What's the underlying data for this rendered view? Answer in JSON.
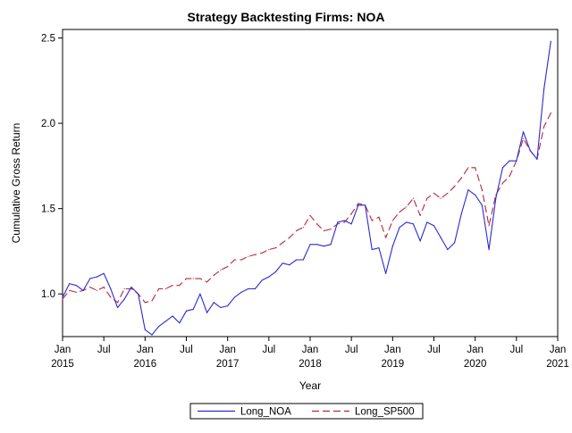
{
  "chart_data": {
    "type": "line",
    "title": "Strategy Backtesting  Firms: NOA",
    "xlabel": "Year",
    "ylabel": "Cumulative Gross Return",
    "xlim": [
      "2015-01",
      "2021-01"
    ],
    "ylim": [
      0.75,
      2.55
    ],
    "yticks": [
      "1.0",
      "1.5",
      "2.0",
      "2.5"
    ],
    "xticks": [
      {
        "date": "2015-01",
        "top": "Jan",
        "bottom": "2015"
      },
      {
        "date": "2015-07",
        "top": "Jul",
        "bottom": ""
      },
      {
        "date": "2016-01",
        "top": "Jan",
        "bottom": "2016"
      },
      {
        "date": "2016-07",
        "top": "Jul",
        "bottom": ""
      },
      {
        "date": "2017-01",
        "top": "Jan",
        "bottom": "2017"
      },
      {
        "date": "2017-07",
        "top": "Jul",
        "bottom": ""
      },
      {
        "date": "2018-01",
        "top": "Jan",
        "bottom": "2018"
      },
      {
        "date": "2018-07",
        "top": "Jul",
        "bottom": ""
      },
      {
        "date": "2019-01",
        "top": "Jan",
        "bottom": "2019"
      },
      {
        "date": "2019-07",
        "top": "Jul",
        "bottom": ""
      },
      {
        "date": "2020-01",
        "top": "Jan",
        "bottom": "2020"
      },
      {
        "date": "2020-07",
        "top": "Jul",
        "bottom": ""
      },
      {
        "date": "2021-01",
        "top": "Jan",
        "bottom": "2021"
      }
    ],
    "grid": false,
    "legend": "bottom-center",
    "x": [
      "2015-01",
      "2015-02",
      "2015-03",
      "2015-04",
      "2015-05",
      "2015-06",
      "2015-07",
      "2015-08",
      "2015-09",
      "2015-10",
      "2015-11",
      "2015-12",
      "2016-01",
      "2016-02",
      "2016-03",
      "2016-04",
      "2016-05",
      "2016-06",
      "2016-07",
      "2016-08",
      "2016-09",
      "2016-10",
      "2016-11",
      "2016-12",
      "2017-01",
      "2017-02",
      "2017-03",
      "2017-04",
      "2017-05",
      "2017-06",
      "2017-07",
      "2017-08",
      "2017-09",
      "2017-10",
      "2017-11",
      "2017-12",
      "2018-01",
      "2018-02",
      "2018-03",
      "2018-04",
      "2018-05",
      "2018-06",
      "2018-07",
      "2018-08",
      "2018-09",
      "2018-10",
      "2018-11",
      "2018-12",
      "2019-01",
      "2019-02",
      "2019-03",
      "2019-04",
      "2019-05",
      "2019-06",
      "2019-07",
      "2019-08",
      "2019-09",
      "2019-10",
      "2019-11",
      "2019-12",
      "2020-01",
      "2020-02",
      "2020-03",
      "2020-04",
      "2020-05",
      "2020-06",
      "2020-07",
      "2020-08",
      "2020-09",
      "2020-10",
      "2020-11",
      "2020-12"
    ],
    "series": [
      {
        "name": "Long_NOA",
        "color": "#2a2ad4",
        "dash": "solid",
        "values": [
          0.98,
          1.06,
          1.05,
          1.02,
          1.09,
          1.1,
          1.12,
          1.03,
          0.92,
          0.97,
          1.04,
          1.0,
          0.79,
          0.76,
          0.81,
          0.84,
          0.87,
          0.83,
          0.9,
          0.91,
          1.0,
          0.89,
          0.95,
          0.92,
          0.93,
          0.98,
          1.01,
          1.03,
          1.03,
          1.08,
          1.1,
          1.13,
          1.18,
          1.17,
          1.2,
          1.2,
          1.29,
          1.29,
          1.28,
          1.29,
          1.42,
          1.43,
          1.41,
          1.52,
          1.52,
          1.26,
          1.27,
          1.12,
          1.28,
          1.39,
          1.42,
          1.41,
          1.31,
          1.42,
          1.4,
          1.33,
          1.26,
          1.3,
          1.47,
          1.61,
          1.58,
          1.52,
          1.26,
          1.56,
          1.74,
          1.78,
          1.78,
          1.95,
          1.84,
          1.79,
          2.2,
          2.48
        ]
      },
      {
        "name": "Long_SP500",
        "color": "#b5293d",
        "dash": "dashed",
        "values": [
          0.97,
          1.02,
          1.01,
          1.02,
          1.04,
          1.02,
          1.04,
          0.98,
          0.95,
          1.03,
          1.03,
          1.0,
          0.95,
          0.96,
          1.03,
          1.03,
          1.05,
          1.05,
          1.09,
          1.09,
          1.09,
          1.07,
          1.11,
          1.14,
          1.16,
          1.2,
          1.2,
          1.22,
          1.23,
          1.24,
          1.26,
          1.27,
          1.3,
          1.33,
          1.37,
          1.39,
          1.46,
          1.41,
          1.37,
          1.38,
          1.41,
          1.42,
          1.47,
          1.53,
          1.52,
          1.43,
          1.45,
          1.33,
          1.43,
          1.48,
          1.51,
          1.56,
          1.46,
          1.56,
          1.59,
          1.56,
          1.59,
          1.63,
          1.68,
          1.74,
          1.74,
          1.61,
          1.4,
          1.58,
          1.65,
          1.69,
          1.78,
          1.91,
          1.84,
          1.79,
          1.98,
          2.06
        ]
      }
    ]
  }
}
